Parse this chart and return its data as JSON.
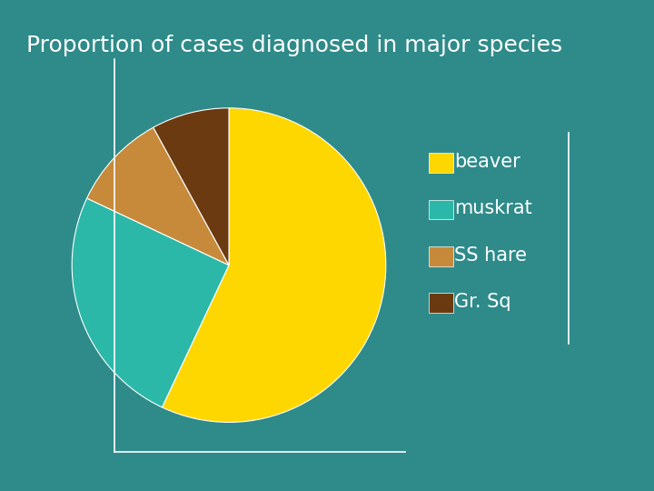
{
  "title": "Proportion of cases diagnosed in major species",
  "labels": [
    "beaver",
    "muskrat",
    "SS hare",
    "Gr. Sq"
  ],
  "values": [
    57,
    25,
    10,
    8
  ],
  "colors": [
    "#FFD700",
    "#2BB8A8",
    "#C68A3A",
    "#6B3A10"
  ],
  "background_color": "#2E8B8A",
  "title_color": "#FFFFFF",
  "title_fontsize": 18,
  "legend_fontsize": 15,
  "startangle": 90,
  "counterclock": false
}
